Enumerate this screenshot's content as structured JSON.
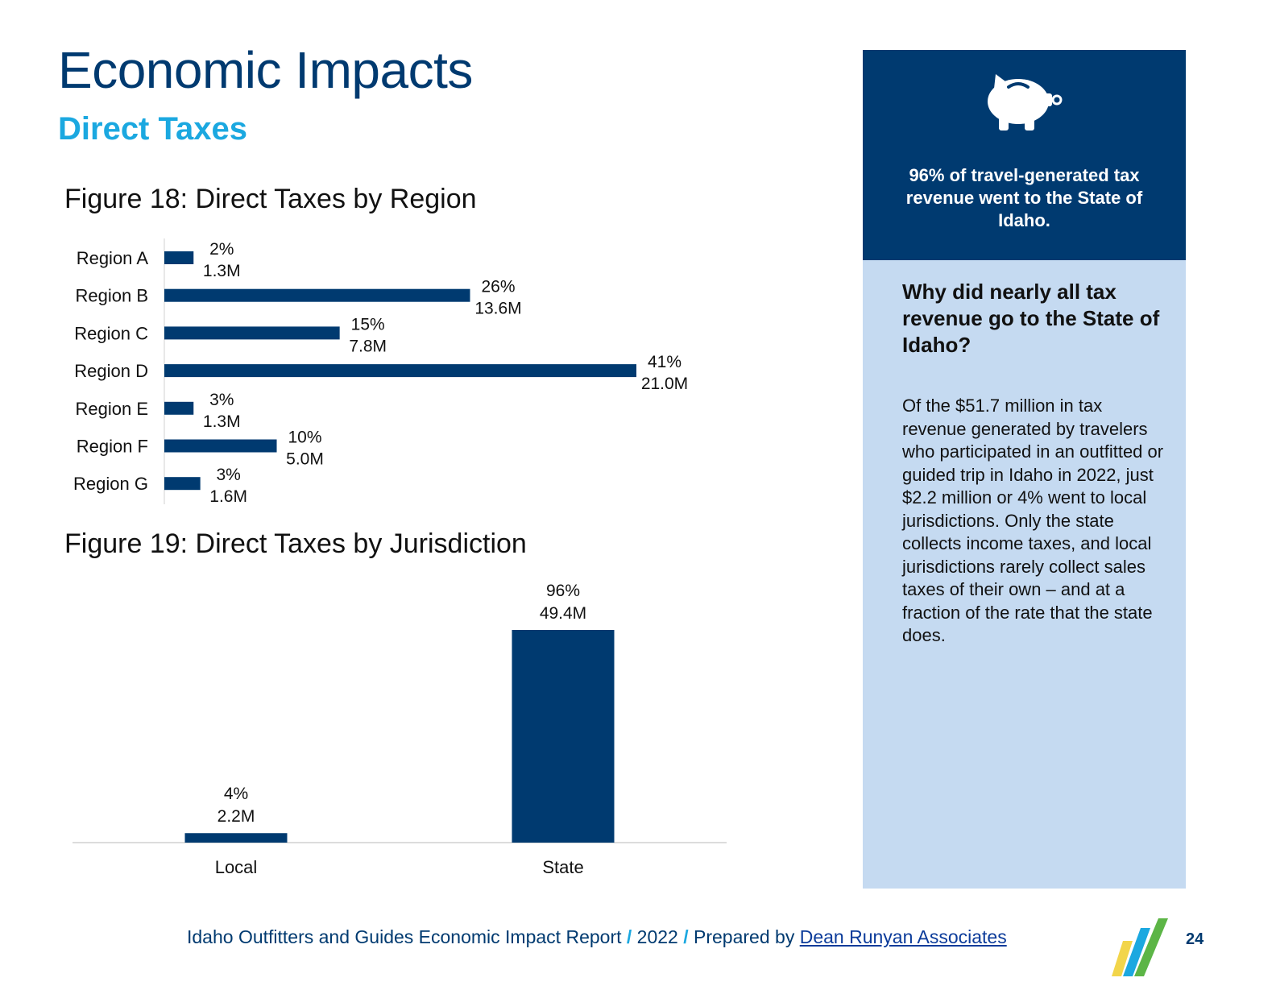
{
  "page": {
    "title": "Economic Impacts",
    "subtitle": "Direct Taxes"
  },
  "chart_data": [
    {
      "type": "bar",
      "orientation": "horizontal",
      "title": "Figure 18: Direct Taxes by Region",
      "categories": [
        "Region A",
        "Region B",
        "Region C",
        "Region D",
        "Region E",
        "Region F",
        "Region G"
      ],
      "values": [
        1.3,
        13.6,
        7.8,
        21.0,
        1.3,
        5.0,
        1.6
      ],
      "percent_labels": [
        "2%",
        "26%",
        "15%",
        "41%",
        "3%",
        "10%",
        "3%"
      ],
      "value_labels": [
        "1.3M",
        "13.6M",
        "7.8M",
        "21.0M",
        "1.3M",
        "5.0M",
        "1.6M"
      ],
      "xlim": [
        0,
        21.0
      ],
      "grid": false,
      "color": "#003a70"
    },
    {
      "type": "bar",
      "orientation": "vertical",
      "title": "Figure 19: Direct Taxes by Jurisdiction",
      "categories": [
        "Local",
        "State"
      ],
      "values": [
        2.2,
        49.4
      ],
      "percent_labels": [
        "4%",
        "96%"
      ],
      "value_labels": [
        "2.2M",
        "49.4M"
      ],
      "ylim": [
        0,
        49.4
      ],
      "grid": false,
      "color": "#003a70"
    }
  ],
  "sidebar": {
    "icon": "piggy-bank-icon",
    "highlight": "96% of travel-generated tax revenue went to the State of Idaho.",
    "question": "Why did nearly all tax revenue go to the State of Idaho?",
    "body": "Of the $51.7 million in tax revenue generated by travelers who participated in an outfitted or guided trip in Idaho in 2022, just $2.2 million or 4% went to local jurisdictions. Only the state collects income taxes, and local jurisdictions rarely collect sales taxes of their own – and at a fraction of the rate that the state does."
  },
  "footer": {
    "report": "Idaho Outfitters and Guides Economic Impact Report",
    "year": "2022",
    "prepared": "Prepared by",
    "author": "Dean Runyan Associates",
    "separator": "/",
    "page_number": "24"
  },
  "colors": {
    "navy": "#003a70",
    "accent_blue": "#1ba8e0",
    "light_panel": "#c5daf1",
    "logo_yellow": "#f2d54a",
    "logo_blue": "#1ba8e0",
    "logo_green": "#5cb546"
  }
}
